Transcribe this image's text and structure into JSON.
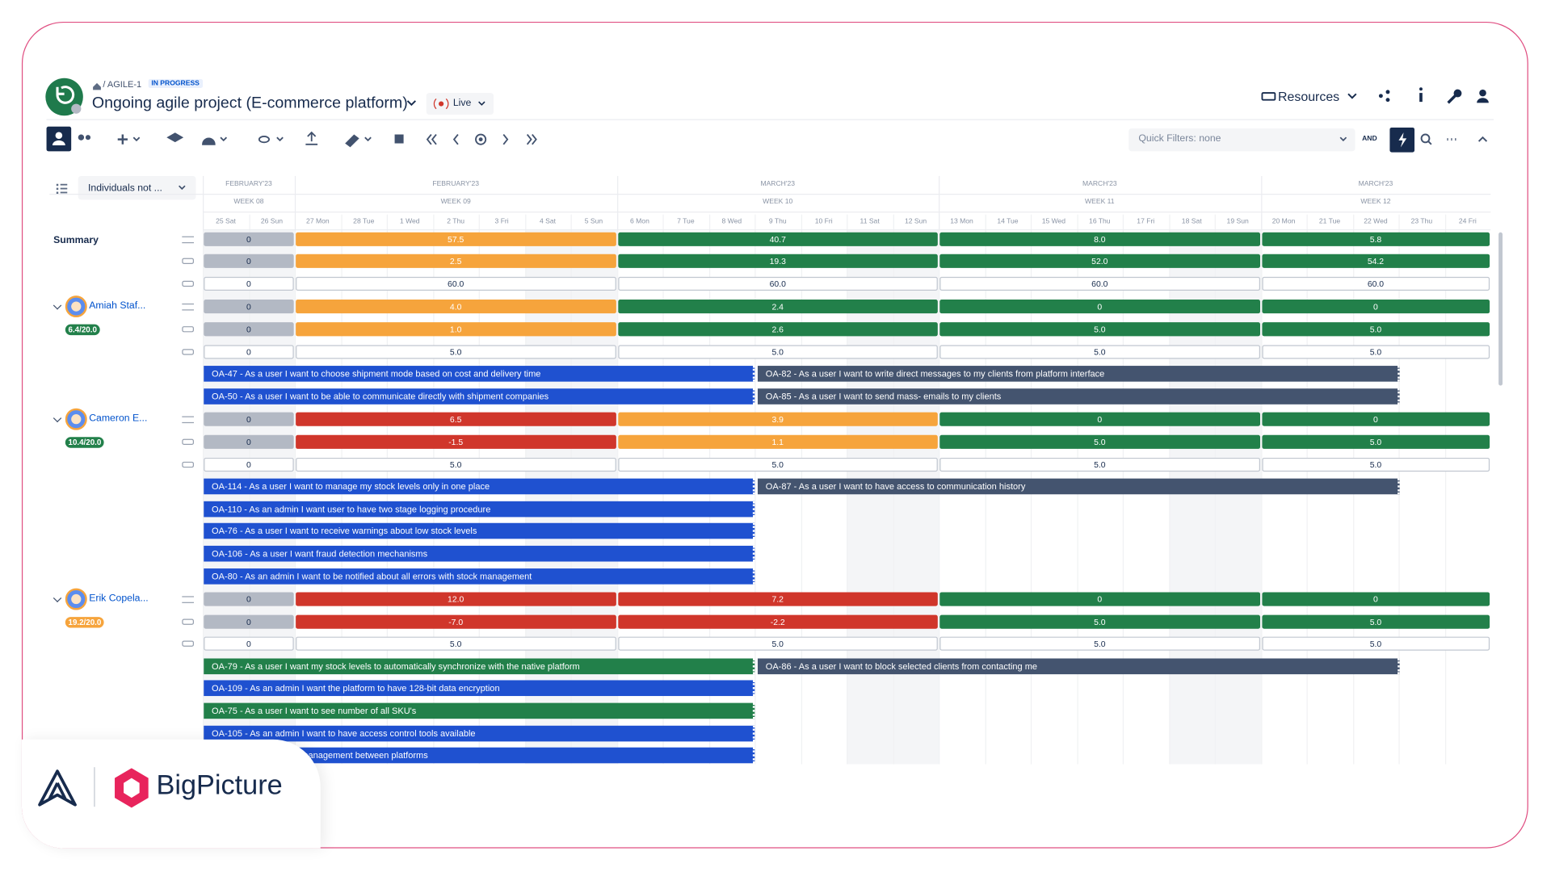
{
  "header": {
    "breadcrumb": "/ AGILE-1",
    "status": "IN PROGRESS",
    "title": "Ongoing agile project (E-commerce platform)",
    "live": "Live",
    "resources": "Resources",
    "quick_filters": "Quick Filters: none",
    "and": "AND"
  },
  "filter": "Individuals not ...",
  "timeline": {
    "weeks": [
      {
        "month": "FEBRUARY'23",
        "week": "WEEK 08",
        "days": [
          "25 Sat",
          "26 Sun"
        ]
      },
      {
        "month": "FEBRUARY'23",
        "week": "WEEK 09",
        "days": [
          "27 Mon",
          "28 Tue",
          "1 Wed",
          "2 Thu",
          "3 Fri",
          "4 Sat",
          "5 Sun"
        ]
      },
      {
        "month": "MARCH'23",
        "week": "WEEK 10",
        "days": [
          "6 Mon",
          "7 Tue",
          "8 Wed",
          "9 Thu",
          "10 Fri",
          "11 Sat",
          "12 Sun"
        ]
      },
      {
        "month": "MARCH'23",
        "week": "WEEK 11",
        "days": [
          "13 Mon",
          "14 Tue",
          "15 Wed",
          "16 Thu",
          "17 Fri",
          "18 Sat",
          "19 Sun"
        ]
      },
      {
        "month": "MARCH'23",
        "week": "WEEK 12",
        "days": [
          "20 Mon",
          "21 Tue",
          "22 Wed",
          "23 Thu",
          "24 Fri"
        ]
      }
    ]
  },
  "summary": {
    "label": "Summary",
    "rows": [
      [
        {
          "text": "0",
          "color": "#b3b9c4"
        },
        {
          "text": "57.5",
          "color": "#f6a43c"
        },
        {
          "text": "40.7",
          "color": "#22804a"
        },
        {
          "text": "8.0",
          "color": "#22804a"
        },
        {
          "text": "5.8",
          "color": "#22804a"
        }
      ],
      [
        {
          "text": "0",
          "color": "#b3b9c4"
        },
        {
          "text": "2.5",
          "color": "#f6a43c"
        },
        {
          "text": "19.3",
          "color": "#22804a"
        },
        {
          "text": "52.0",
          "color": "#22804a"
        },
        {
          "text": "54.2",
          "color": "#22804a"
        }
      ],
      [
        {
          "text": "0",
          "color": "#ffffff"
        },
        {
          "text": "60.0",
          "color": "#ffffff"
        },
        {
          "text": "60.0",
          "color": "#ffffff"
        },
        {
          "text": "60.0",
          "color": "#ffffff"
        },
        {
          "text": "60.0",
          "color": "#ffffff"
        }
      ]
    ]
  },
  "people": [
    {
      "name": "Amiah Staf...",
      "badge": "6.4/20.0",
      "badge_color": "#22804a",
      "rows": [
        [
          {
            "text": "0",
            "color": "#b3b9c4"
          },
          {
            "text": "4.0",
            "color": "#f6a43c"
          },
          {
            "text": "2.4",
            "color": "#22804a"
          },
          {
            "text": "0",
            "color": "#22804a"
          },
          {
            "text": "0",
            "color": "#22804a"
          }
        ],
        [
          {
            "text": "0",
            "color": "#b3b9c4"
          },
          {
            "text": "1.0",
            "color": "#f6a43c"
          },
          {
            "text": "2.6",
            "color": "#22804a"
          },
          {
            "text": "5.0",
            "color": "#22804a"
          },
          {
            "text": "5.0",
            "color": "#22804a"
          }
        ],
        [
          {
            "text": "0",
            "color": "#ffffff"
          },
          {
            "text": "5.0",
            "color": "#ffffff"
          },
          {
            "text": "5.0",
            "color": "#ffffff"
          },
          {
            "text": "5.0",
            "color": "#ffffff"
          },
          {
            "text": "5.0",
            "color": "#ffffff"
          }
        ]
      ],
      "tasks": [
        {
          "text": "OA-47 - As a user I want to choose shipment mode based on cost and delivery time",
          "color": "#1f51d0"
        },
        {
          "text": "OA-50 - As a user I want to be able to communicate directly with shipment companies",
          "color": "#1f51d0"
        }
      ],
      "later_tasks": [
        {
          "text": "OA-82 - As a user I want to write direct messages to my clients from platform interface",
          "color": "#44546f"
        },
        {
          "text": "OA-85 - As a user I want to send mass- emails to my clients",
          "color": "#44546f"
        }
      ]
    },
    {
      "name": "Cameron E...",
      "badge": "10.4/20.0",
      "badge_color": "#22804a",
      "rows": [
        [
          {
            "text": "0",
            "color": "#b3b9c4"
          },
          {
            "text": "6.5",
            "color": "#d0362b"
          },
          {
            "text": "3.9",
            "color": "#f6a43c"
          },
          {
            "text": "0",
            "color": "#22804a"
          },
          {
            "text": "0",
            "color": "#22804a"
          }
        ],
        [
          {
            "text": "0",
            "color": "#b3b9c4"
          },
          {
            "text": "-1.5",
            "color": "#d0362b"
          },
          {
            "text": "1.1",
            "color": "#f6a43c"
          },
          {
            "text": "5.0",
            "color": "#22804a"
          },
          {
            "text": "5.0",
            "color": "#22804a"
          }
        ],
        [
          {
            "text": "0",
            "color": "#ffffff"
          },
          {
            "text": "5.0",
            "color": "#ffffff"
          },
          {
            "text": "5.0",
            "color": "#ffffff"
          },
          {
            "text": "5.0",
            "color": "#ffffff"
          },
          {
            "text": "5.0",
            "color": "#ffffff"
          }
        ]
      ],
      "tasks": [
        {
          "text": "OA-114 - As a user I want to manage my stock levels only in one place",
          "color": "#1f51d0"
        },
        {
          "text": "OA-110 - As an admin I want user to have two stage logging procedure",
          "color": "#1f51d0"
        },
        {
          "text": "OA-76 - As a user I want to receive warnings about low stock levels",
          "color": "#1f51d0"
        },
        {
          "text": "OA-106 - As a user I want fraud detection mechanisms",
          "color": "#1f51d0"
        },
        {
          "text": "OA-80 - As an admin I want to be notified about all errors with stock management",
          "color": "#1f51d0"
        }
      ],
      "later_tasks": [
        {
          "text": "OA-87 - As a user I want to have access to communication history",
          "color": "#44546f"
        }
      ]
    },
    {
      "name": "Erik Copela...",
      "badge": "19.2/20.0",
      "badge_color": "#f6a43c",
      "rows": [
        [
          {
            "text": "0",
            "color": "#b3b9c4"
          },
          {
            "text": "12.0",
            "color": "#d0362b"
          },
          {
            "text": "7.2",
            "color": "#d0362b"
          },
          {
            "text": "0",
            "color": "#22804a"
          },
          {
            "text": "0",
            "color": "#22804a"
          }
        ],
        [
          {
            "text": "0",
            "color": "#b3b9c4"
          },
          {
            "text": "-7.0",
            "color": "#d0362b"
          },
          {
            "text": "-2.2",
            "color": "#d0362b"
          },
          {
            "text": "5.0",
            "color": "#22804a"
          },
          {
            "text": "5.0",
            "color": "#22804a"
          }
        ],
        [
          {
            "text": "0",
            "color": "#ffffff"
          },
          {
            "text": "5.0",
            "color": "#ffffff"
          },
          {
            "text": "5.0",
            "color": "#ffffff"
          },
          {
            "text": "5.0",
            "color": "#ffffff"
          },
          {
            "text": "5.0",
            "color": "#ffffff"
          }
        ]
      ],
      "tasks": [
        {
          "text": "OA-79 - As a user I want my stock levels to automatically synchronize with the native platform",
          "color": "#22804a"
        },
        {
          "text": "OA-109 - As an admin I want the platform to have 128-bit data encryption",
          "color": "#1f51d0"
        },
        {
          "text": "OA-75 - As a user I want to see number of all SKU's",
          "color": "#22804a"
        },
        {
          "text": "OA-105 - As an admin I want to have access control tools available",
          "color": "#1f51d0"
        },
        {
          "text": "be synchronized price management between platforms",
          "color": "#1f51d0"
        }
      ],
      "later_tasks": [
        {
          "text": "OA-86 - As a user I want to block selected clients from contacting me",
          "color": "#44546f"
        }
      ]
    }
  ],
  "logo": {
    "brand": "BigPicture"
  }
}
